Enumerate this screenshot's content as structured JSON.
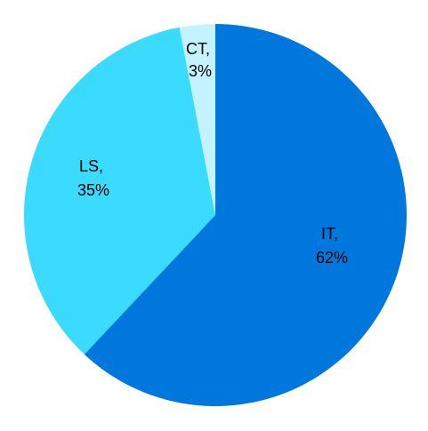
{
  "chart_data": {
    "type": "pie",
    "title": "",
    "categories": [
      "IT",
      "LS",
      "CT"
    ],
    "values": [
      62,
      35,
      3
    ],
    "unit": "%",
    "colors": [
      "#0077DD",
      "#3ADBFF",
      "#C4F2FF"
    ],
    "labels": [
      {
        "name": "IT,",
        "value": "62%"
      },
      {
        "name": "LS,",
        "value": "35%"
      },
      {
        "name": "CT,",
        "value": "3%"
      }
    ],
    "legend": "none",
    "start_angle": "12 o'clock",
    "direction": "clockwise"
  }
}
